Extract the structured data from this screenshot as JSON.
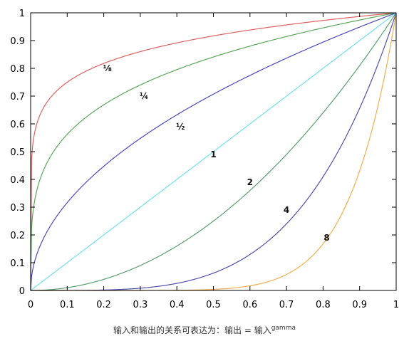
{
  "chart_data": {
    "type": "line",
    "title": "",
    "xlabel": "",
    "ylabel": "",
    "xlim": [
      0,
      1
    ],
    "ylim": [
      0,
      1
    ],
    "xticks": [
      "0",
      "0.1",
      "0.2",
      "0.3",
      "0.4",
      "0.5",
      "0.6",
      "0.7",
      "0.8",
      "0.9",
      "1"
    ],
    "yticks": [
      "0",
      "0.1",
      "0.2",
      "0.3",
      "0.4",
      "0.5",
      "0.6",
      "0.7",
      "0.8",
      "0.9",
      "1"
    ],
    "grid": false,
    "series": [
      {
        "label": "⅛",
        "gamma": 0.125,
        "color": "#e06060",
        "label_at": [
          0.21,
          0.8
        ]
      },
      {
        "label": "¼",
        "gamma": 0.25,
        "color": "#5aa85a",
        "label_at": [
          0.31,
          0.7
        ]
      },
      {
        "label": "½",
        "gamma": 0.5,
        "color": "#4a4ac0",
        "label_at": [
          0.41,
          0.59
        ]
      },
      {
        "label": "1",
        "gamma": 1,
        "color": "#70e0f0",
        "label_at": [
          0.5,
          0.49
        ]
      },
      {
        "label": "2",
        "gamma": 2,
        "color": "#5aa070",
        "label_at": [
          0.6,
          0.39
        ]
      },
      {
        "label": "4",
        "gamma": 4,
        "color": "#5050b0",
        "label_at": [
          0.7,
          0.29
        ]
      },
      {
        "label": "8",
        "gamma": 8,
        "color": "#f0b050",
        "label_at": [
          0.81,
          0.19
        ]
      }
    ]
  },
  "caption": {
    "text": "输入和输出的关系可表达为：输出 = 输入",
    "superscript": "gamma"
  }
}
